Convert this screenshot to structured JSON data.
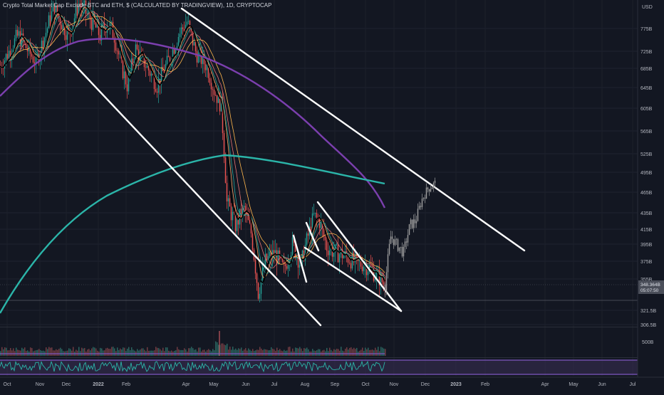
{
  "chart_data": {
    "type": "candlestick",
    "title": "Crypto Total Market Cap Exclude BTC and ETH, $ (CALCULATED BY TRADINGVIEW), 1D, CRYPTOCAP",
    "price_axis": {
      "currency_label": "USD",
      "ticks": [
        "775B",
        "725B",
        "685B",
        "645B",
        "605B",
        "565B",
        "525B",
        "495B",
        "465B",
        "435B",
        "415B",
        "395B",
        "375B",
        "355B",
        "321.5B",
        "306.5B"
      ],
      "last_price": "348.364B",
      "countdown": "05:07:50",
      "range": [
        302,
        805
      ]
    },
    "time_axis": {
      "ticks": [
        "Oct",
        "Nov",
        "Dec",
        "2022",
        "Feb",
        "Apr",
        "May",
        "Jun",
        "Jul",
        "Aug",
        "Sep",
        "Oct",
        "Nov",
        "Dec",
        "2023",
        "Feb",
        "Apr",
        "May",
        "Jun",
        "Jul"
      ]
    },
    "volume_pane": {
      "tick": "500B"
    },
    "annotations": {
      "descending_channel": "white trendlines",
      "falling_wedge": "white trendlines",
      "projection": "grey projected candles toward upper trendline"
    },
    "colors": {
      "background": "#131722",
      "up": "#26a69a",
      "down": "#ef5350",
      "ma_teal": "#2bb5a9",
      "ma_purple": "#7b3fae",
      "trendline": "#ffffff",
      "projection": "#a0a0a0",
      "oscillator_band": "#7e57c2"
    }
  }
}
